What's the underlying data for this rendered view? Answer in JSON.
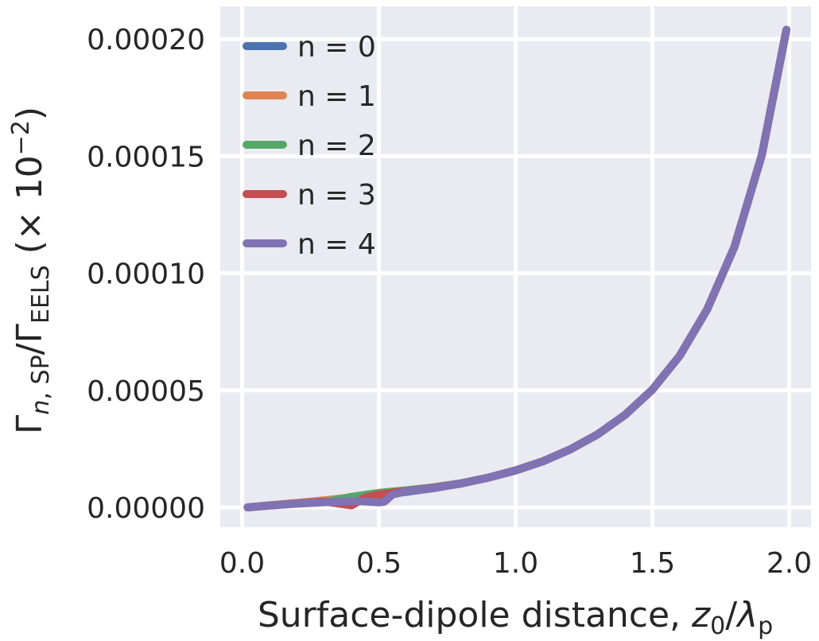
{
  "chart_data": {
    "type": "line",
    "xlabel": "Surface-dipole distance, z0/λp",
    "ylabel": "Γn,SP/ΓEELS (× 10−2)",
    "xlim": [
      -0.08,
      2.08
    ],
    "ylim": [
      -8.5e-06,
      0.000214
    ],
    "xticks": [
      0.0,
      0.5,
      1.0,
      1.5,
      2.0
    ],
    "xtick_labels": [
      "0.0",
      "0.5",
      "1.0",
      "1.5",
      "2.0"
    ],
    "yticks": [
      0.0,
      5e-05,
      0.0001,
      0.00015,
      0.0002
    ],
    "ytick_labels": [
      "0.00000",
      "0.00005",
      "0.00010",
      "0.00015",
      "0.00020"
    ],
    "grid": true,
    "legend_position": "top-left",
    "colors": [
      "#4c72b0",
      "#dd8452",
      "#55a868",
      "#c44e52",
      "#8172b3"
    ],
    "series": [
      {
        "name": "n = 0",
        "x": [
          0.02,
          0.1,
          0.2,
          0.3,
          0.4,
          0.5,
          0.6,
          0.7,
          0.8,
          0.9,
          1.0,
          1.1,
          1.2,
          1.3,
          1.4,
          1.5,
          1.6,
          1.7,
          1.8,
          1.9,
          1.99
        ],
        "y": [
          0.0,
          8e-07,
          1.7e-06,
          2.7e-06,
          3.8e-06,
          5.1e-06,
          6.6e-06,
          8.2e-06,
          1.02e-05,
          1.27e-05,
          1.58e-05,
          1.97e-05,
          2.48e-05,
          3.12e-05,
          3.95e-05,
          5.03e-05,
          6.48e-05,
          8.45e-05,
          0.0001113,
          0.0001505,
          0.000204
        ]
      },
      {
        "name": "n = 1",
        "x": [
          0.02,
          0.1,
          0.2,
          0.3,
          0.4,
          0.5,
          0.6,
          0.7,
          0.8,
          0.9,
          1.0,
          1.1,
          1.2,
          1.3,
          1.4,
          1.5,
          1.6,
          1.7,
          1.8,
          1.9,
          1.99
        ],
        "y": [
          0.0,
          9e-07,
          1.9e-06,
          3e-06,
          4.3e-06,
          5.7e-06,
          7.1e-06,
          8.5e-06,
          1.03e-05,
          1.27e-05,
          1.58e-05,
          1.97e-05,
          2.48e-05,
          3.12e-05,
          3.95e-05,
          5.03e-05,
          6.48e-05,
          8.45e-05,
          0.0001113,
          0.0001505,
          0.000204
        ]
      },
      {
        "name": "n = 2",
        "x": [
          0.02,
          0.1,
          0.2,
          0.3,
          0.4,
          0.5,
          0.6,
          0.7,
          0.8,
          0.9,
          1.0,
          1.1,
          1.2,
          1.3,
          1.4,
          1.5,
          1.6,
          1.7,
          1.8,
          1.9,
          1.99
        ],
        "y": [
          0.0,
          8e-07,
          1.6e-06,
          2.2e-06,
          4.5e-06,
          6.2e-06,
          7.3e-06,
          8.6e-06,
          1.03e-05,
          1.27e-05,
          1.58e-05,
          1.97e-05,
          2.48e-05,
          3.12e-05,
          3.95e-05,
          5.03e-05,
          6.48e-05,
          8.45e-05,
          0.0001113,
          0.0001505,
          0.000204
        ]
      },
      {
        "name": "n = 3",
        "x": [
          0.02,
          0.1,
          0.2,
          0.3,
          0.4,
          0.45,
          0.5,
          0.55,
          0.6,
          0.7,
          0.8,
          0.9,
          1.0,
          1.1,
          1.2,
          1.3,
          1.4,
          1.5,
          1.6,
          1.7,
          1.8,
          1.9,
          1.99
        ],
        "y": [
          0.0,
          8e-07,
          1.7e-06,
          2.5e-06,
          8e-07,
          4.2e-06,
          5.5e-06,
          6.3e-06,
          6.9e-06,
          8.4e-06,
          1.02e-05,
          1.27e-05,
          1.58e-05,
          1.97e-05,
          2.48e-05,
          3.12e-05,
          3.95e-05,
          5.03e-05,
          6.48e-05,
          8.45e-05,
          0.0001113,
          0.0001505,
          0.000204
        ]
      },
      {
        "name": "n = 4",
        "x": [
          0.02,
          0.1,
          0.2,
          0.3,
          0.4,
          0.45,
          0.5,
          0.52,
          0.55,
          0.6,
          0.7,
          0.8,
          0.9,
          1.0,
          1.1,
          1.2,
          1.3,
          1.4,
          1.5,
          1.6,
          1.7,
          1.8,
          1.9,
          1.99
        ],
        "y": [
          0.0,
          8e-07,
          1.6e-06,
          2.2e-06,
          2.6e-06,
          2.5e-06,
          2.1e-06,
          2.4e-06,
          5.5e-06,
          6.8e-06,
          8.3e-06,
          1.02e-05,
          1.27e-05,
          1.58e-05,
          1.97e-05,
          2.48e-05,
          3.12e-05,
          3.95e-05,
          5.03e-05,
          6.48e-05,
          8.45e-05,
          0.0001113,
          0.0001505,
          0.000204
        ]
      }
    ]
  }
}
